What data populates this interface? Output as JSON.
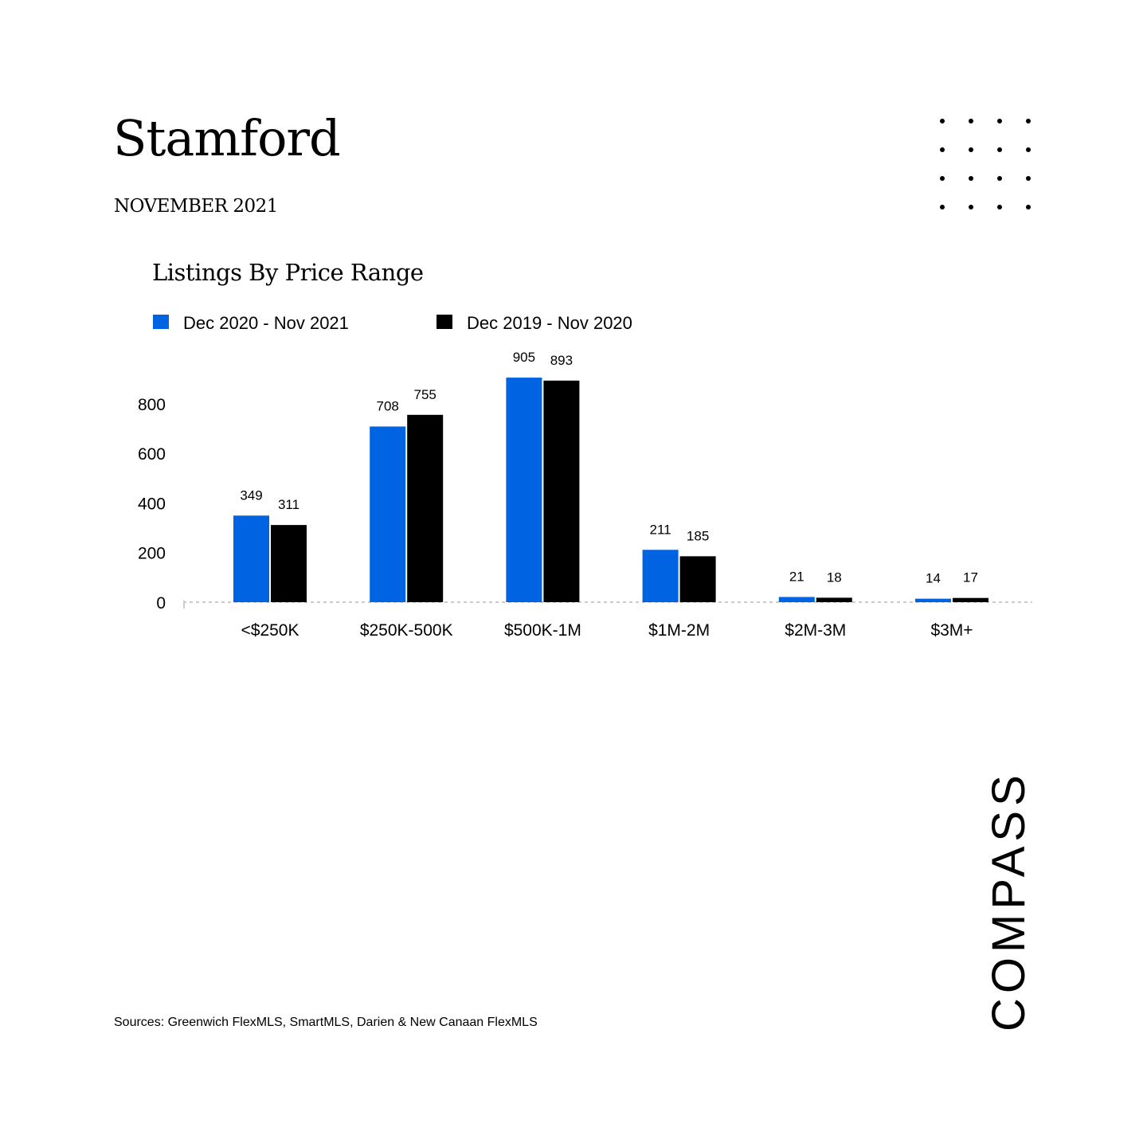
{
  "header": {
    "title": "Stamford",
    "date": "NOVEMBER 2021"
  },
  "brand": {
    "logo_text": "COMPASS"
  },
  "footer": {
    "sources": "Sources: Greenwich FlexMLS, SmartMLS, Darien & New Canaan FlexMLS"
  },
  "colors": {
    "series1": "#0063e1",
    "series2": "#000000",
    "baseline": "#cccccc"
  },
  "chart_data": {
    "type": "bar",
    "title": "Listings By Price Range",
    "categories": [
      "<$250K",
      "$250K-500K",
      "$500K-1M",
      "$1M-2M",
      "$2M-3M",
      "$3M+"
    ],
    "series": [
      {
        "name": "Dec 2020 - Nov 2021",
        "values": [
          349,
          708,
          905,
          211,
          21,
          14
        ]
      },
      {
        "name": "Dec 2019 - Nov 2020",
        "values": [
          311,
          755,
          893,
          185,
          18,
          17
        ]
      }
    ],
    "yticks": [
      0,
      200,
      400,
      600,
      800
    ],
    "ylim": [
      0,
      905
    ],
    "legend": "top-left",
    "grid": false,
    "data_labels": true
  }
}
